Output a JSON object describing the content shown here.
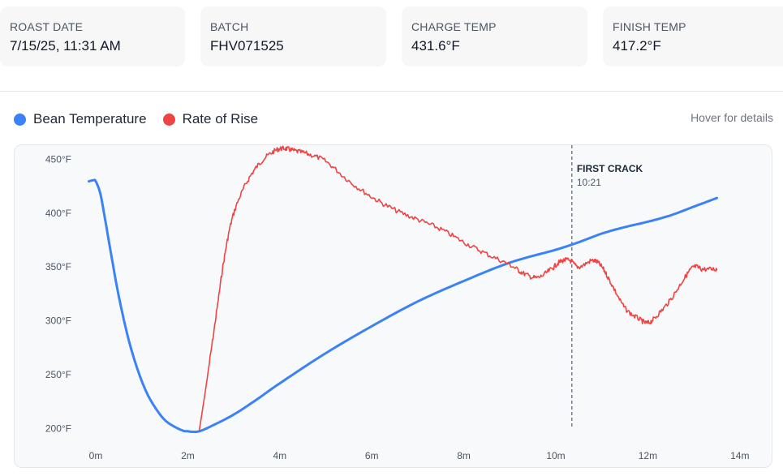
{
  "stats": [
    {
      "label": "ROAST DATE",
      "value": "7/15/25, 11:31 AM"
    },
    {
      "label": "BATCH",
      "value": "FHV071525"
    },
    {
      "label": "CHARGE TEMP",
      "value": "431.6°F"
    },
    {
      "label": "FINISH TEMP",
      "value": "417.2°F"
    }
  ],
  "hover_hint": "Hover for details",
  "colors": {
    "bean": "#3b82f6",
    "ror": "#ef4444",
    "marker": "#374151"
  },
  "chart_data": {
    "type": "line",
    "legend_position": "top-left",
    "grid": false,
    "x_unit": "minutes",
    "xlim": [
      0,
      14
    ],
    "ylim": [
      195,
      455
    ],
    "x_ticks": [
      0,
      2,
      4,
      6,
      8,
      10,
      12,
      14
    ],
    "x_tick_labels": [
      "0m",
      "2m",
      "4m",
      "6m",
      "8m",
      "10m",
      "12m",
      "14m"
    ],
    "y_ticks": [
      200,
      250,
      300,
      350,
      400,
      450
    ],
    "y_tick_labels": [
      "200°F",
      "250°F",
      "300°F",
      "350°F",
      "400°F",
      "450°F"
    ],
    "annotations": [
      {
        "x": 10.35,
        "label": "FIRST CRACK",
        "sublabel": "10:21"
      }
    ],
    "series": [
      {
        "name": "Bean Temperature",
        "x": [
          -0.15,
          -0.05,
          0.0,
          0.1,
          0.2,
          0.35,
          0.5,
          0.7,
          0.9,
          1.1,
          1.3,
          1.5,
          1.7,
          1.9,
          2.0,
          2.1,
          2.25,
          2.5,
          3.0,
          3.5,
          4.0,
          5.0,
          6.0,
          7.0,
          8.0,
          9.0,
          10.0,
          10.5,
          11.0,
          11.5,
          12.0,
          12.5,
          13.0,
          13.5
        ],
        "values": [
          429.5,
          430.5,
          429.5,
          418,
          395,
          358,
          323,
          285,
          256,
          234,
          219,
          208,
          202,
          198,
          197.5,
          197,
          197.5,
          202,
          213,
          227,
          242,
          270,
          295,
          318,
          337,
          354,
          366,
          373,
          381,
          387,
          392,
          398,
          406,
          414
        ]
      },
      {
        "name": "Rate of Rise",
        "x": [
          2.25,
          2.4,
          2.6,
          2.8,
          3.0,
          3.3,
          3.6,
          3.9,
          4.1,
          4.3,
          4.6,
          5.0,
          5.5,
          6.0,
          6.5,
          7.0,
          7.5,
          8.0,
          8.5,
          9.0,
          9.3,
          9.6,
          9.9,
          10.1,
          10.3,
          10.5,
          10.8,
          11.0,
          11.2,
          11.5,
          11.8,
          12.0,
          12.2,
          12.5,
          12.8,
          13.0,
          13.2,
          13.5
        ],
        "values": [
          198,
          240,
          300,
          360,
          400,
          430,
          448,
          458,
          460,
          458,
          455,
          448,
          430,
          415,
          403,
          394,
          385,
          373,
          362,
          352,
          344,
          340,
          348,
          355,
          356,
          350,
          356,
          350,
          335,
          312,
          302,
          298,
          305,
          320,
          340,
          350,
          348,
          348
        ]
      }
    ]
  }
}
